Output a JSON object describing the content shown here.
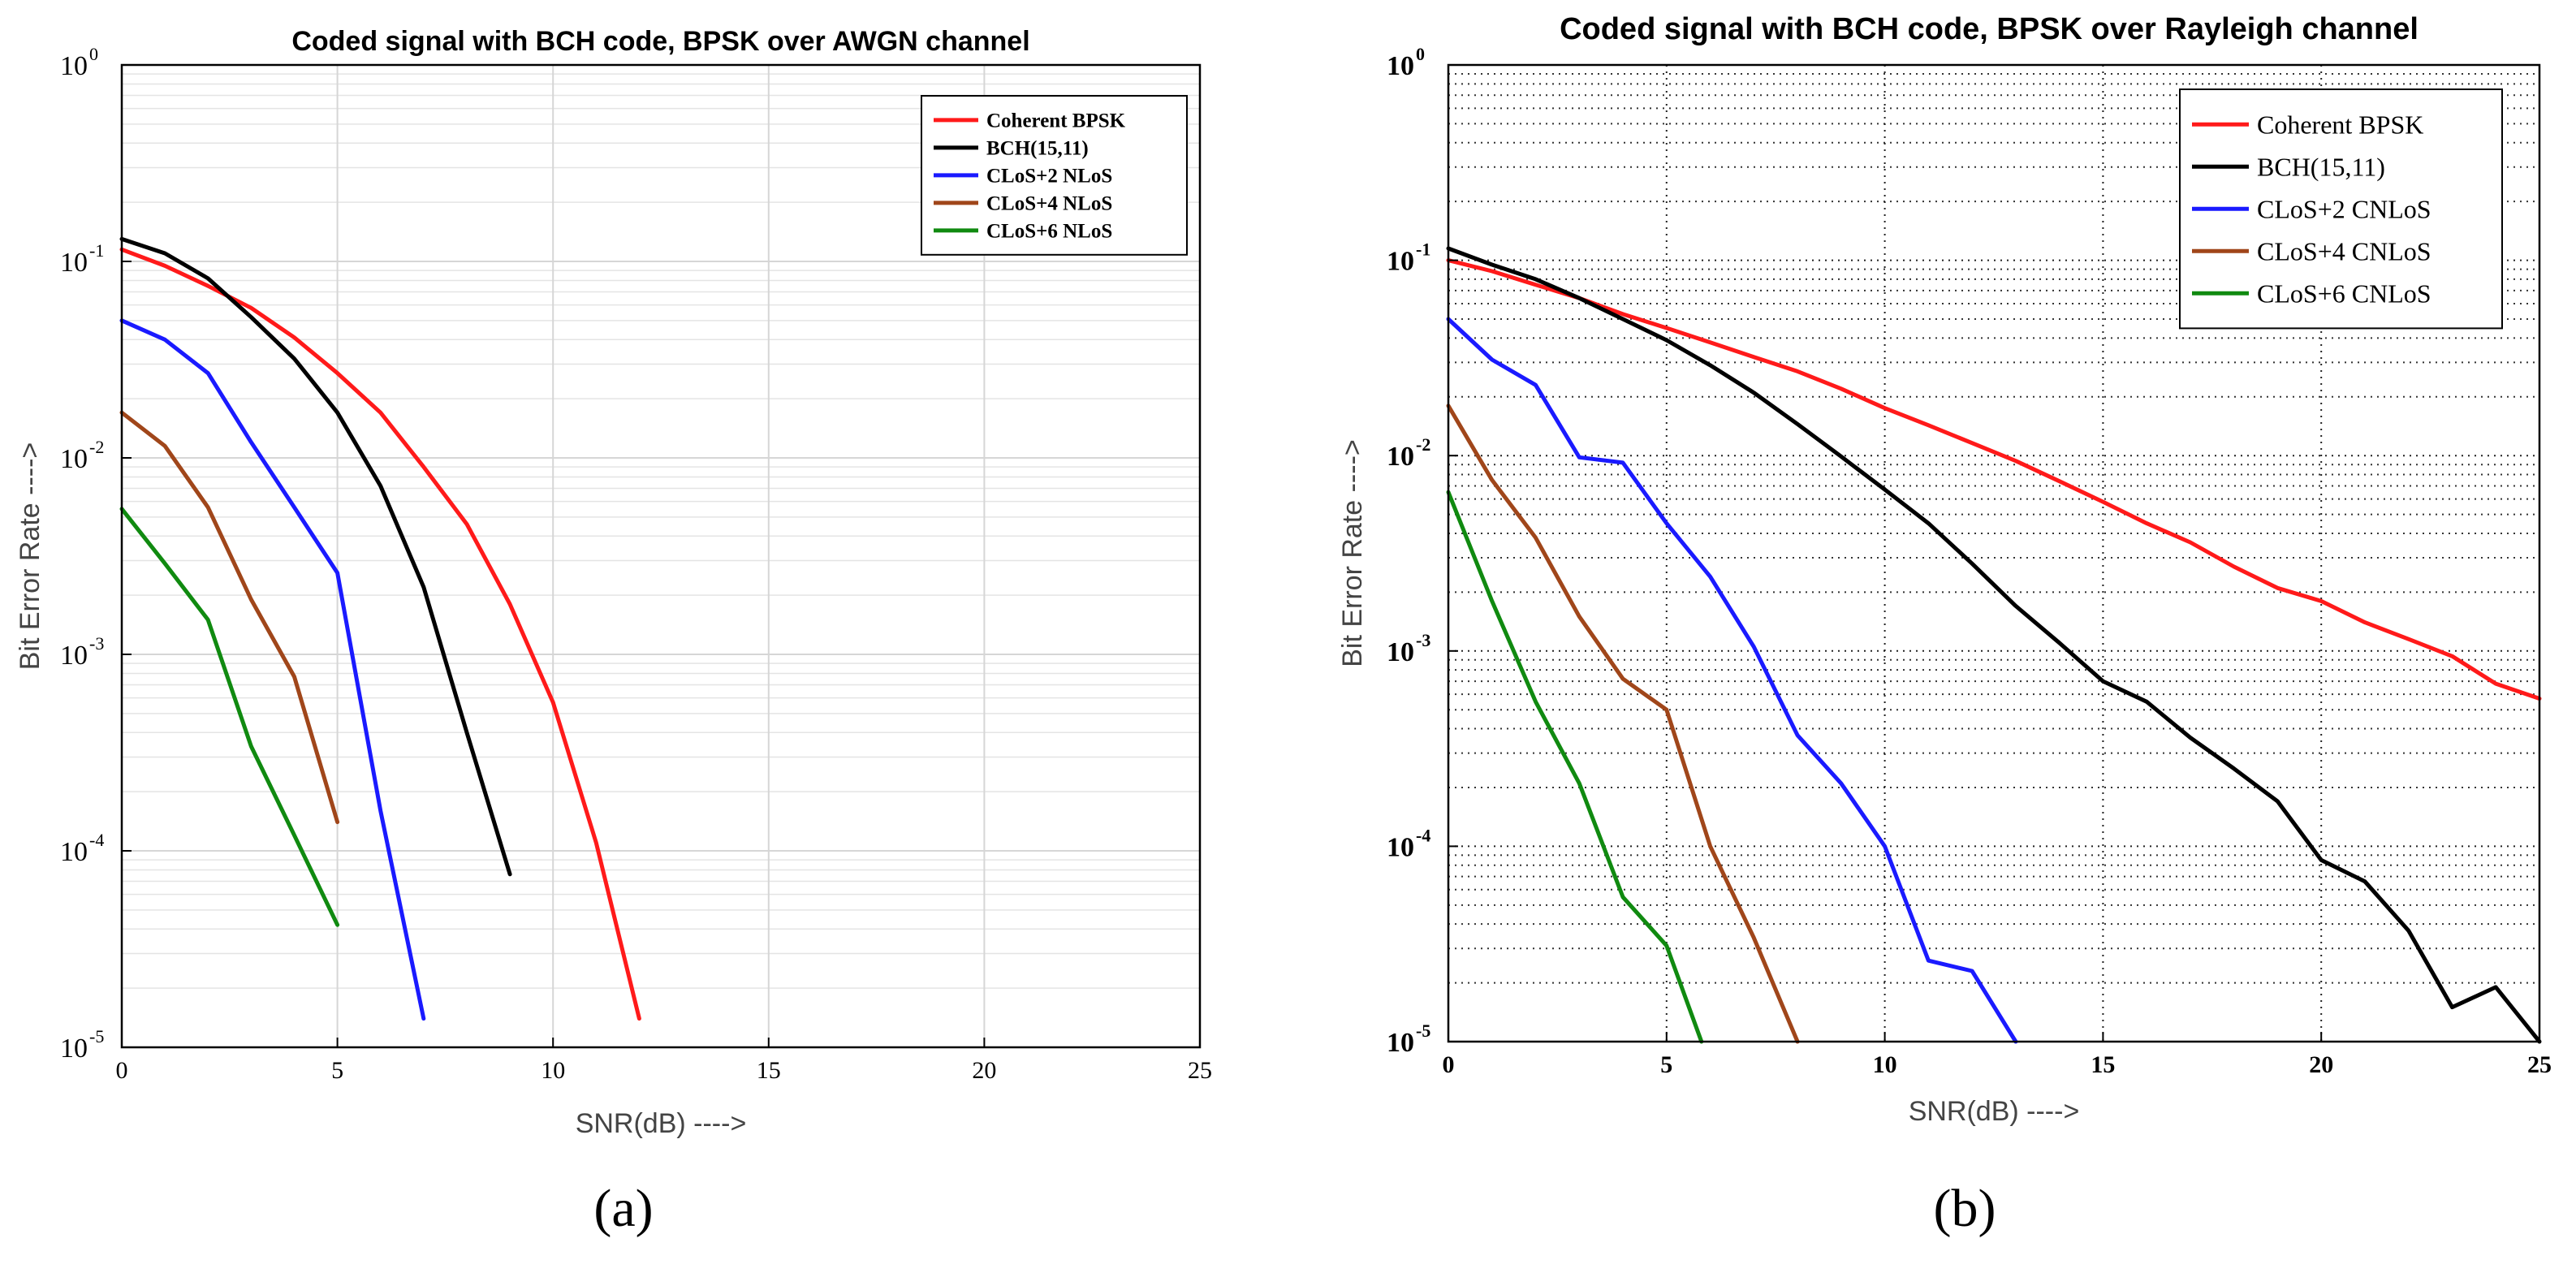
{
  "chart_data": [
    {
      "type": "line",
      "panel": "(a)",
      "title": "Coded signal with BCH code, BPSK over AWGN channel",
      "xlabel": "SNR(dB) ---->",
      "ylabel": "Bit Error Rate ---->",
      "xlim": [
        0,
        25
      ],
      "ylim": [
        1e-05,
        1
      ],
      "yscale": "log",
      "x_ticks": [
        0,
        5,
        10,
        15,
        20,
        25
      ],
      "y_ticks": [
        {
          "exp": -5,
          "label": "10",
          "sup": "-5"
        },
        {
          "exp": -4,
          "label": "10",
          "sup": "-4"
        },
        {
          "exp": -3,
          "label": "10",
          "sup": "-3"
        },
        {
          "exp": -2,
          "label": "10",
          "sup": "-2"
        },
        {
          "exp": -1,
          "label": "10",
          "sup": "-1"
        },
        {
          "exp": 0,
          "label": "10",
          "sup": "0"
        }
      ],
      "grid": "solid-light",
      "legend_position": "top-right",
      "series": [
        {
          "name": "Coherent BPSK",
          "color": "#ff1a1a",
          "x": [
            0,
            1,
            2,
            3,
            4,
            5,
            6,
            7,
            8,
            9,
            10,
            11,
            12
          ],
          "y": [
            0.115,
            0.095,
            0.075,
            0.058,
            0.041,
            0.027,
            0.017,
            0.009,
            0.0046,
            0.0018,
            0.00057,
            0.00011,
            1.4e-05
          ]
        },
        {
          "name": "BCH(15,11)",
          "color": "#000000",
          "x": [
            0,
            1,
            2,
            3,
            4,
            5,
            6,
            7,
            8,
            9
          ],
          "y": [
            0.13,
            0.11,
            0.082,
            0.052,
            0.032,
            0.017,
            0.0072,
            0.0022,
            0.0004,
            7.6e-05
          ]
        },
        {
          "name": "CLoS+2 NLoS",
          "color": "#1a1aff",
          "x": [
            0,
            1,
            2,
            3,
            4,
            5,
            6,
            7
          ],
          "y": [
            0.05,
            0.04,
            0.027,
            0.012,
            0.0056,
            0.0026,
            0.00016,
            1.4e-05
          ]
        },
        {
          "name": "CLoS+4 NLoS",
          "color": "#a0461a",
          "x": [
            0,
            1,
            2,
            3,
            4,
            5
          ],
          "y": [
            0.017,
            0.0115,
            0.0056,
            0.0019,
            0.00077,
            0.00014
          ]
        },
        {
          "name": "CLoS+6 NLoS",
          "color": "#108a10",
          "x": [
            0,
            1,
            2,
            3,
            4,
            5
          ],
          "y": [
            0.0055,
            0.0029,
            0.0015,
            0.00034,
            0.00012,
            4.2e-05
          ]
        }
      ]
    },
    {
      "type": "line",
      "panel": "(b)",
      "title": "Coded signal with BCH code, BPSK over Rayleigh channel",
      "xlabel": "SNR(dB) ---->",
      "ylabel": "Bit Error Rate ---->",
      "xlim": [
        0,
        25
      ],
      "ylim": [
        1e-05,
        1
      ],
      "yscale": "log",
      "x_ticks": [
        0,
        5,
        10,
        15,
        20,
        25
      ],
      "y_ticks": [
        {
          "exp": -5,
          "label": "10",
          "sup": "-5"
        },
        {
          "exp": -4,
          "label": "10",
          "sup": "-4"
        },
        {
          "exp": -3,
          "label": "10",
          "sup": "-3"
        },
        {
          "exp": -2,
          "label": "10",
          "sup": "-2"
        },
        {
          "exp": -1,
          "label": "10",
          "sup": "-1"
        },
        {
          "exp": 0,
          "label": "10",
          "sup": "0"
        }
      ],
      "grid": "dotted-dark",
      "legend_position": "top-right",
      "series": [
        {
          "name": "Coherent BPSK",
          "color": "#ff1a1a",
          "x": [
            0,
            1,
            2,
            3,
            4,
            5,
            6,
            7,
            8,
            9,
            10,
            11,
            12,
            13,
            14,
            15,
            16,
            17,
            18,
            19,
            20,
            21,
            22,
            23,
            24,
            25
          ],
          "y": [
            0.1,
            0.088,
            0.075,
            0.064,
            0.053,
            0.045,
            0.038,
            0.032,
            0.027,
            0.022,
            0.0175,
            0.0143,
            0.0116,
            0.0094,
            0.0074,
            0.0058,
            0.0045,
            0.0036,
            0.0027,
            0.0021,
            0.0018,
            0.0014,
            0.00115,
            0.00094,
            0.00068,
            0.00057
          ]
        },
        {
          "name": "BCH(15,11)",
          "color": "#000000",
          "x": [
            0,
            1,
            2,
            3,
            4,
            5,
            6,
            7,
            8,
            9,
            10,
            11,
            12,
            13,
            14,
            15,
            16,
            17,
            18,
            19,
            20,
            21,
            22,
            23,
            24,
            25
          ],
          "y": [
            0.115,
            0.095,
            0.08,
            0.064,
            0.05,
            0.039,
            0.029,
            0.021,
            0.0145,
            0.0099,
            0.0067,
            0.0045,
            0.0028,
            0.0017,
            0.0011,
            0.0007,
            0.00055,
            0.00036,
            0.00025,
            0.00017,
            8.5e-05,
            6.6e-05,
            3.7e-05,
            1.5e-05,
            1.9e-05,
            1e-05
          ]
        },
        {
          "name": "CLoS+2 CNLoS",
          "color": "#1a1aff",
          "x": [
            0,
            1,
            2,
            3,
            4,
            5,
            6,
            7,
            8,
            9,
            10,
            11,
            12,
            13
          ],
          "y": [
            0.05,
            0.031,
            0.023,
            0.0098,
            0.0092,
            0.0045,
            0.0024,
            0.00105,
            0.00037,
            0.00021,
            0.0001,
            2.6e-05,
            2.3e-05,
            1e-05
          ]
        },
        {
          "name": "CLoS+4 CNLoS",
          "color": "#a0461a",
          "x": [
            0,
            1,
            2,
            3,
            4,
            5,
            6,
            7,
            8
          ],
          "y": [
            0.018,
            0.0075,
            0.0038,
            0.0015,
            0.00072,
            0.0005,
            0.0001,
            3.4e-05,
            1e-05
          ]
        },
        {
          "name": "CLoS+6 CNLoS",
          "color": "#108a10",
          "x": [
            0,
            1,
            2,
            3,
            4,
            5,
            5.8
          ],
          "y": [
            0.0065,
            0.0018,
            0.00055,
            0.00021,
            5.5e-05,
            3.1e-05,
            1e-05
          ]
        }
      ]
    }
  ],
  "captions": [
    "(a)",
    "(b)"
  ]
}
